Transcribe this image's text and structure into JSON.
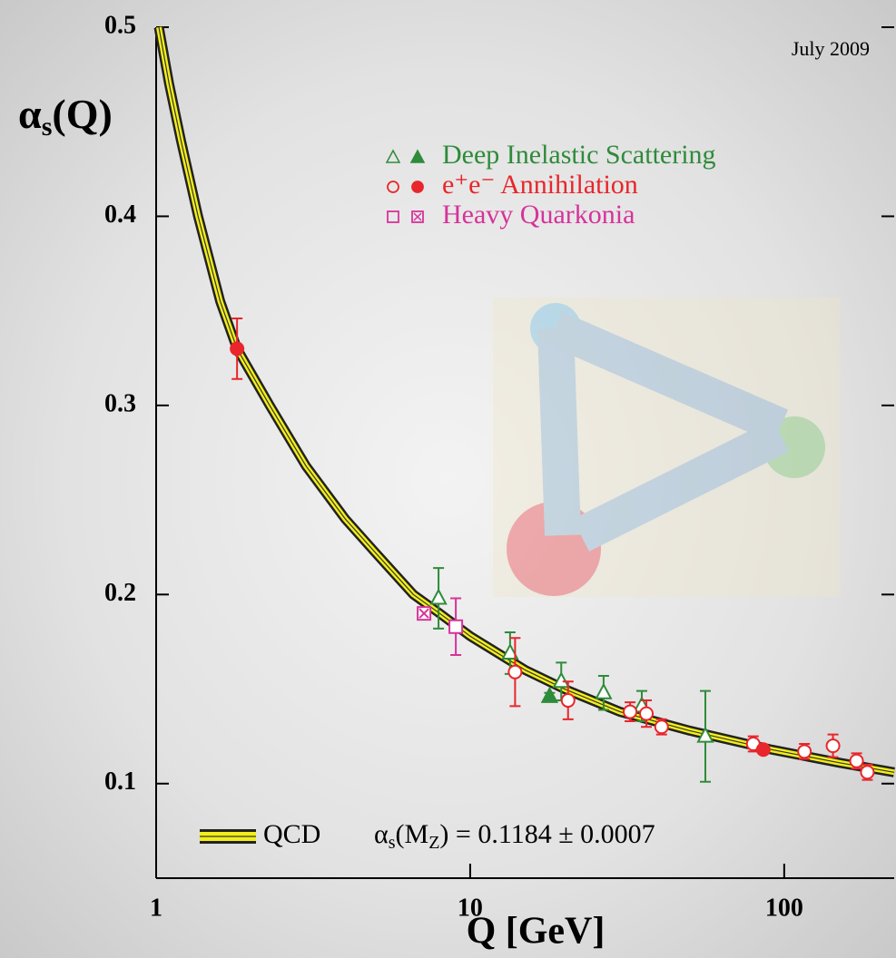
{
  "chart_data": {
    "type": "scatter",
    "date_note": "July 2009",
    "x_label": "Q [GeV]",
    "y_label": [
      "α",
      "s",
      "(Q)"
    ],
    "x_log": true,
    "xlim": [
      1,
      224
    ],
    "xticks": [
      1,
      10,
      100
    ],
    "ylim": [
      0.05,
      0.5
    ],
    "yticks": [
      0.1,
      0.2,
      0.3,
      0.4,
      0.5
    ],
    "band": {
      "name": "QCD",
      "label": [
        "α",
        "s",
        "(M",
        "Z",
        ") = 0.1184 ± 0.0007"
      ],
      "color": "#f2ee1a",
      "x": [
        1.02,
        1.1,
        1.2,
        1.36,
        1.6,
        1.81,
        2.3,
        3,
        4,
        5,
        6.59,
        8,
        10,
        15,
        20,
        30,
        50,
        91.2,
        150,
        224
      ],
      "values": [
        0.5,
        0.47,
        0.44,
        0.4,
        0.355,
        0.33,
        0.3,
        0.268,
        0.24,
        0.222,
        0.2,
        0.19,
        0.178,
        0.16,
        0.15,
        0.138,
        0.128,
        0.118,
        0.111,
        0.106
      ]
    },
    "series": [
      {
        "name": "Deep Inelastic Scattering",
        "color": "#2e8b3a",
        "marker": "triangle",
        "x": [
          7.93,
          13.4,
          17.9,
          19.5,
          26.6,
          35.2,
          56.1
        ],
        "values": [
          0.198,
          0.169,
          0.146,
          0.154,
          0.148,
          0.141,
          0.125
        ],
        "errors": [
          0.016,
          0.011,
          0.002,
          0.01,
          0.009,
          0.008,
          0.024
        ],
        "filled": [
          false,
          false,
          true,
          false,
          false,
          false,
          false
        ]
      },
      {
        "name": "e⁺e⁻ Annihilation",
        "color": "#e8262b",
        "marker": "circle",
        "x": [
          1.81,
          13.9,
          20.5,
          32.3,
          36.4,
          40.7,
          79.7,
          85.8,
          116,
          143,
          170,
          184
        ],
        "values": [
          0.33,
          0.159,
          0.144,
          0.138,
          0.137,
          0.13,
          0.121,
          0.118,
          0.117,
          0.12,
          0.112,
          0.106
        ],
        "errors": [
          0.016,
          0.018,
          0.01,
          0.005,
          0.007,
          0.004,
          0.004,
          0.002,
          0.004,
          0.006,
          0.004,
          0.004
        ],
        "filled": [
          true,
          false,
          false,
          false,
          false,
          false,
          false,
          true,
          false,
          false,
          false,
          false
        ]
      },
      {
        "name": "Heavy Quarkonia",
        "color": "#d6339a",
        "marker": "square",
        "x": [
          7.13,
          9.0
        ],
        "values": [
          0.19,
          0.183
        ],
        "errors": [
          0.003,
          0.015
        ],
        "filled": [
          true,
          false
        ]
      }
    ]
  }
}
